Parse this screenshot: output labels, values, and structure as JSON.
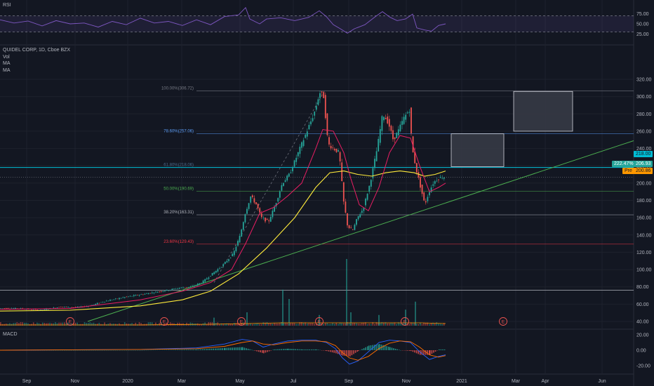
{
  "panes": {
    "rsi": {
      "title": "RSI",
      "ticks": [
        "75.00",
        "50.00",
        "25.00"
      ],
      "tick_values": [
        75,
        50,
        25
      ],
      "bands": [
        70,
        30
      ]
    },
    "main": {
      "ticks": [
        "320.00",
        "300.00",
        "280.00",
        "260.00",
        "240.00",
        "220.00",
        "200.00",
        "180.00",
        "160.00",
        "140.00",
        "120.00",
        "100.00",
        "80.00",
        "60.00",
        "40.00"
      ],
      "tick_values": [
        320,
        300,
        280,
        260,
        240,
        220,
        200,
        180,
        160,
        140,
        120,
        100,
        80,
        60,
        40
      ]
    },
    "macd": {
      "title": "MACD",
      "ticks": [
        "20.00",
        "0.00",
        "-20.00"
      ],
      "tick_values": [
        20,
        0,
        -20
      ]
    }
  },
  "legend": {
    "symbol": "QUIDEL CORP, 1D, Cboe BZX",
    "vol": "Vol",
    "ma1": "MA",
    "ma2": "MA"
  },
  "x_axis": {
    "labels": [
      "Sep",
      "Nov",
      "2020",
      "Mar",
      "May",
      "Jul",
      "Sep",
      "Nov",
      "2021",
      "Mar",
      "Apr",
      "Jun"
    ]
  },
  "fib_levels": [
    {
      "label": "100.00%(306.72)",
      "price": 306.72,
      "color": "#787b86"
    },
    {
      "label": "78.60%(257.06)",
      "price": 257.06,
      "color": "#5b9cf6"
    },
    {
      "label": "61.80%(218.06)",
      "price": 218.06,
      "color": "#4a6a8a"
    },
    {
      "label": "50.00%(190.69)",
      "price": 190.69,
      "color": "#4caf50"
    },
    {
      "label": "38.20%(163.31)",
      "price": 163.31,
      "color": "#b2b5be"
    },
    {
      "label": "23.60%(129.43)",
      "price": 129.43,
      "color": "#f23645"
    }
  ],
  "price_tags": {
    "level": "218.00",
    "percent": "222.47%",
    "last": "206.93",
    "pre_label": "Pre",
    "pre_value": "200.86"
  },
  "earnings_markers": [
    "E",
    "E",
    "E",
    "E",
    "E",
    "E"
  ],
  "colors": {
    "background": "#131722",
    "up": "#26a69a",
    "down": "#ef5350",
    "ma_fast": "#e91e63",
    "ma_slow": "#ffeb3b",
    "trend": "#4caf50",
    "rsi": "#7e57c2",
    "macd": "#2962ff",
    "signal": "#ff6d00",
    "level": "#00bcd4"
  },
  "chart_data": {
    "type": "candlestick",
    "price_path": [
      [
        0,
        55
      ],
      [
        30,
        55
      ],
      [
        60,
        53
      ],
      [
        90,
        57
      ],
      [
        110,
        56
      ],
      [
        130,
        58
      ],
      [
        150,
        63
      ],
      [
        180,
        68
      ],
      [
        210,
        72
      ],
      [
        240,
        76
      ],
      [
        260,
        79
      ],
      [
        275,
        80
      ],
      [
        290,
        85
      ],
      [
        305,
        95
      ],
      [
        320,
        105
      ],
      [
        335,
        118
      ],
      [
        345,
        140
      ],
      [
        352,
        165
      ],
      [
        360,
        185
      ],
      [
        368,
        175
      ],
      [
        375,
        160
      ],
      [
        385,
        155
      ],
      [
        395,
        175
      ],
      [
        405,
        200
      ],
      [
        415,
        210
      ],
      [
        425,
        230
      ],
      [
        435,
        250
      ],
      [
        445,
        270
      ],
      [
        452,
        285
      ],
      [
        458,
        305
      ],
      [
        464,
        300
      ],
      [
        470,
        245
      ],
      [
        478,
        240
      ],
      [
        486,
        235
      ],
      [
        492,
        180
      ],
      [
        498,
        150
      ],
      [
        505,
        145
      ],
      [
        512,
        160
      ],
      [
        520,
        170
      ],
      [
        530,
        200
      ],
      [
        540,
        240
      ],
      [
        548,
        280
      ],
      [
        556,
        270
      ],
      [
        563,
        250
      ],
      [
        570,
        260
      ],
      [
        578,
        275
      ],
      [
        586,
        285
      ],
      [
        590,
        240
      ],
      [
        596,
        215
      ],
      [
        602,
        195
      ],
      [
        608,
        175
      ],
      [
        614,
        190
      ],
      [
        620,
        200
      ],
      [
        626,
        205
      ],
      [
        632,
        207
      ]
    ],
    "ma_fast": [
      [
        0,
        54
      ],
      [
        100,
        55
      ],
      [
        200,
        65
      ],
      [
        260,
        75
      ],
      [
        300,
        85
      ],
      [
        330,
        100
      ],
      [
        350,
        130
      ],
      [
        370,
        165
      ],
      [
        390,
        172
      ],
      [
        410,
        185
      ],
      [
        430,
        200
      ],
      [
        450,
        240
      ],
      [
        460,
        262
      ],
      [
        475,
        260
      ],
      [
        490,
        235
      ],
      [
        500,
        205
      ],
      [
        512,
        175
      ],
      [
        525,
        168
      ],
      [
        540,
        195
      ],
      [
        555,
        235
      ],
      [
        570,
        255
      ],
      [
        585,
        252
      ],
      [
        598,
        220
      ],
      [
        612,
        190
      ],
      [
        625,
        195
      ],
      [
        635,
        200
      ]
    ],
    "ma_slow": [
      [
        0,
        52
      ],
      [
        100,
        53
      ],
      [
        200,
        58
      ],
      [
        260,
        65
      ],
      [
        300,
        75
      ],
      [
        340,
        95
      ],
      [
        380,
        125
      ],
      [
        420,
        160
      ],
      [
        450,
        195
      ],
      [
        470,
        212
      ],
      [
        490,
        214
      ],
      [
        510,
        210
      ],
      [
        530,
        208
      ],
      [
        550,
        212
      ],
      [
        570,
        214
      ],
      [
        590,
        212
      ],
      [
        605,
        208
      ],
      [
        620,
        210
      ],
      [
        635,
        214
      ]
    ],
    "trendline": [
      [
        125,
        40
      ],
      [
        903,
        249
      ]
    ],
    "rectangles": [
      {
        "x0": 643,
        "x1": 718,
        "low": 219,
        "high": 257
      },
      {
        "x0": 732,
        "x1": 816,
        "low": 260,
        "high": 306
      }
    ],
    "horizontal_levels": [
      218.0,
      206.93,
      76
    ],
    "volume_spikes": [
      {
        "x": 352,
        "v": 1.0
      },
      {
        "x": 403,
        "v": 2.7
      },
      {
        "x": 412,
        "v": 2.0
      },
      {
        "x": 494,
        "v": 5.0
      },
      {
        "x": 500,
        "v": 1.0
      },
      {
        "x": 578,
        "v": 1.2
      },
      {
        "x": 592,
        "v": 1.8
      },
      {
        "x": 455,
        "v": 0.8
      },
      {
        "x": 540,
        "v": 0.8
      },
      {
        "x": 305,
        "v": 0.6
      }
    ],
    "rsi_path": [
      [
        0,
        60
      ],
      [
        20,
        52
      ],
      [
        40,
        57
      ],
      [
        60,
        45
      ],
      [
        80,
        58
      ],
      [
        100,
        50
      ],
      [
        120,
        52
      ],
      [
        140,
        42
      ],
      [
        160,
        56
      ],
      [
        180,
        48
      ],
      [
        200,
        64
      ],
      [
        220,
        52
      ],
      [
        240,
        56
      ],
      [
        260,
        46
      ],
      [
        280,
        60
      ],
      [
        300,
        48
      ],
      [
        320,
        68
      ],
      [
        340,
        72
      ],
      [
        350,
        90
      ],
      [
        356,
        62
      ],
      [
        370,
        50
      ],
      [
        380,
        62
      ],
      [
        400,
        65
      ],
      [
        420,
        58
      ],
      [
        440,
        66
      ],
      [
        455,
        82
      ],
      [
        465,
        68
      ],
      [
        475,
        48
      ],
      [
        485,
        38
      ],
      [
        495,
        27
      ],
      [
        505,
        38
      ],
      [
        520,
        48
      ],
      [
        535,
        68
      ],
      [
        545,
        80
      ],
      [
        556,
        66
      ],
      [
        566,
        58
      ],
      [
        578,
        62
      ],
      [
        588,
        74
      ],
      [
        594,
        40
      ],
      [
        605,
        35
      ],
      [
        615,
        32
      ],
      [
        625,
        46
      ],
      [
        635,
        50
      ]
    ],
    "macd_line": [
      [
        0,
        0
      ],
      [
        200,
        1
      ],
      [
        280,
        3
      ],
      [
        320,
        8
      ],
      [
        345,
        14
      ],
      [
        360,
        12
      ],
      [
        375,
        4
      ],
      [
        390,
        8
      ],
      [
        410,
        12
      ],
      [
        430,
        13
      ],
      [
        450,
        13
      ],
      [
        465,
        10
      ],
      [
        478,
        2
      ],
      [
        488,
        -10
      ],
      [
        498,
        -18
      ],
      [
        510,
        -14
      ],
      [
        525,
        -2
      ],
      [
        540,
        10
      ],
      [
        555,
        13
      ],
      [
        570,
        12
      ],
      [
        585,
        10
      ],
      [
        598,
        -2
      ],
      [
        612,
        -12
      ],
      [
        625,
        -8
      ],
      [
        635,
        -6
      ]
    ],
    "signal_line": [
      [
        0,
        0
      ],
      [
        200,
        1
      ],
      [
        280,
        2
      ],
      [
        320,
        5
      ],
      [
        345,
        10
      ],
      [
        360,
        12
      ],
      [
        375,
        8
      ],
      [
        390,
        7
      ],
      [
        410,
        10
      ],
      [
        430,
        12
      ],
      [
        450,
        12
      ],
      [
        465,
        11
      ],
      [
        478,
        6
      ],
      [
        488,
        -3
      ],
      [
        498,
        -10
      ],
      [
        510,
        -13
      ],
      [
        525,
        -8
      ],
      [
        540,
        2
      ],
      [
        555,
        9
      ],
      [
        570,
        12
      ],
      [
        585,
        11
      ],
      [
        598,
        4
      ],
      [
        612,
        -6
      ],
      [
        625,
        -9
      ],
      [
        635,
        -7
      ]
    ]
  }
}
